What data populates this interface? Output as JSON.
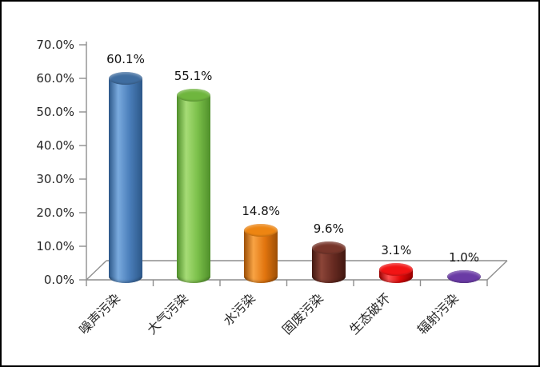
{
  "chart_data": {
    "type": "bar",
    "subtype": "3d-cylinder-columns",
    "title": "",
    "xlabel": "",
    "ylabel": "",
    "categories": [
      "噪声污染",
      "大气污染",
      "水污染",
      "固废污染",
      "生态破坏",
      "辐射污染"
    ],
    "values": [
      60.1,
      55.1,
      14.8,
      9.6,
      3.1,
      1.0
    ],
    "data_labels": [
      "60.1%",
      "55.1%",
      "14.8%",
      "9.6%",
      "3.1%",
      "1.0%"
    ],
    "yticks": [
      "0.0%",
      "10.0%",
      "20.0%",
      "30.0%",
      "40.0%",
      "50.0%",
      "60.0%",
      "70.0%"
    ],
    "ylim": [
      0,
      70
    ],
    "grid": false,
    "legend_position": "none",
    "background_color": "#ffffff",
    "border_color": "#000000",
    "axis_color": "#8E8E8E",
    "text_color": "#262626",
    "series_colors": [
      {
        "name": "blue",
        "mid": "#4A7EBA",
        "light": "#79AADE",
        "dark": "#2C5788",
        "top": "#3F6DA0"
      },
      {
        "name": "green",
        "mid": "#7BC04A",
        "light": "#A6DC76",
        "dark": "#4F8F2A",
        "top": "#6FB63E"
      },
      {
        "name": "orange",
        "mid": "#E2750E",
        "light": "#F8A344",
        "dark": "#9C4F06",
        "top": "#ED8512"
      },
      {
        "name": "maroon",
        "mid": "#682B22",
        "light": "#8C4538",
        "dark": "#421811",
        "top": "#77352A"
      },
      {
        "name": "red",
        "mid": "#E60A0A",
        "light": "#FF5050",
        "dark": "#9A0000",
        "top": "#F21414"
      },
      {
        "name": "purple",
        "mid": "#5E3295",
        "light": "#8257BC",
        "dark": "#3C1C64",
        "top": "#6A3BA5"
      }
    ]
  }
}
